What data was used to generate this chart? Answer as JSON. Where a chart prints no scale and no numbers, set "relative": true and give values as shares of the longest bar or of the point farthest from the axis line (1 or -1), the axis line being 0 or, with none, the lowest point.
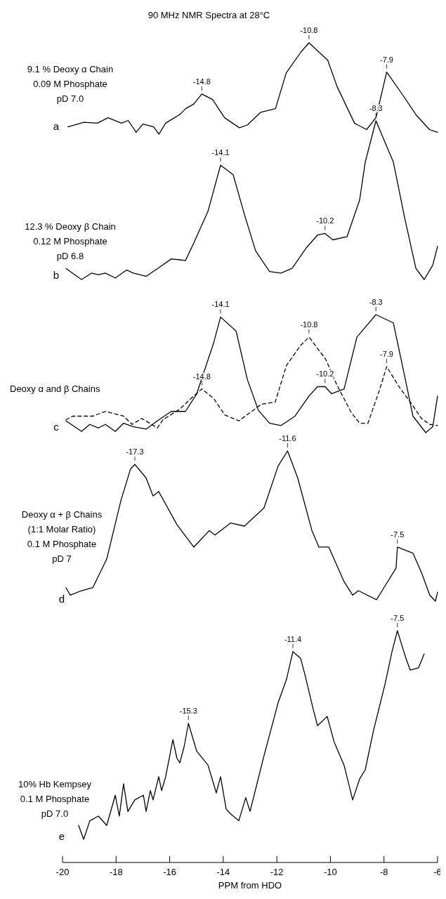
{
  "chart_data": [
    {
      "type": "line",
      "relative": true,
      "title": "9.1 % Deoxy α Chain\n0.09 M Phosphate\npD 7.0",
      "subtitle": "a",
      "xlim": [
        -20,
        -6
      ],
      "line_style": "solid",
      "color": "#000000",
      "annotations": [
        "90 MHz NMR Spectra at 28°C",
        {
          "text": "-14.8",
          "x": -14.8,
          "y": 0.44
        },
        {
          "text": "-10.8",
          "x": -10.8,
          "y": 1.0
        },
        {
          "text": "-7.9",
          "x": -7.9,
          "y": 0.68
        }
      ],
      "x": [
        -19.8,
        -19.2,
        -18.7,
        -18.3,
        -17.8,
        -17.55,
        -17.25,
        -17.0,
        -16.6,
        -16.4,
        -16.15,
        -15.6,
        -15.4,
        -15.1,
        -14.8,
        -14.4,
        -13.95,
        -13.4,
        -13.1,
        -12.6,
        -12.05,
        -11.65,
        -11.1,
        -10.8,
        -10.1,
        -9.75,
        -9.1,
        -8.65,
        -8.3,
        -7.9,
        -7.35,
        -6.8,
        -6.3,
        -6.0
      ],
      "values": [
        0.08,
        0.13,
        0.12,
        0.18,
        0.12,
        0.15,
        0.02,
        0.11,
        0.08,
        0.0,
        0.12,
        0.22,
        0.28,
        0.33,
        0.44,
        0.38,
        0.18,
        0.07,
        0.1,
        0.24,
        0.28,
        0.67,
        0.9,
        1.0,
        0.81,
        0.52,
        0.12,
        0.05,
        0.18,
        0.68,
        0.45,
        0.21,
        0.05,
        0.02
      ]
    },
    {
      "type": "line",
      "relative": true,
      "title": "12.3 % Deoxy β Chain\n0.12 M Phosphate\npD 6.8",
      "subtitle": "b",
      "xlim": [
        -20,
        -6
      ],
      "line_style": "solid",
      "color": "#000000",
      "annotations": [
        {
          "text": "-14.1",
          "x": -14.1,
          "y": 0.72
        },
        {
          "text": "-10.2",
          "x": -10.2,
          "y": 0.29
        },
        {
          "text": "-8.3",
          "x": -8.3,
          "y": 1.0
        }
      ],
      "x": [
        -19.87,
        -19.29,
        -18.92,
        -18.66,
        -18.4,
        -18.03,
        -17.61,
        -17.35,
        -16.88,
        -16.36,
        -15.94,
        -15.41,
        -15.1,
        -14.57,
        -14.1,
        -13.63,
        -13.21,
        -12.79,
        -12.27,
        -11.85,
        -11.43,
        -10.9,
        -10.48,
        -10.2,
        -9.91,
        -9.38,
        -8.91,
        -8.7,
        -8.3,
        -7.65,
        -7.23,
        -6.81,
        -6.5,
        -6.18,
        -6.0
      ],
      "values": [
        0.07,
        0.0,
        0.04,
        0.03,
        0.04,
        0.01,
        0.06,
        0.04,
        0.02,
        0.08,
        0.13,
        0.12,
        0.23,
        0.43,
        0.72,
        0.66,
        0.41,
        0.18,
        0.05,
        0.04,
        0.07,
        0.2,
        0.28,
        0.29,
        0.25,
        0.27,
        0.5,
        0.74,
        1.0,
        0.74,
        0.39,
        0.07,
        0.0,
        0.09,
        0.21
      ]
    },
    {
      "type": "line",
      "relative": true,
      "title": "Deoxy α and β Chains",
      "subtitle": "c",
      "xlim": [
        -20,
        -6
      ],
      "annotations": [
        {
          "text": "-14.1",
          "x": -14.1,
          "y": 0.98
        },
        {
          "text": "-14.8",
          "x": -14.8,
          "y": 0.37
        },
        {
          "text": "-10.8",
          "x": -10.8,
          "y": 0.81
        },
        {
          "text": "-10.2",
          "x": -10.2,
          "y": 0.39
        },
        {
          "text": "-8.3",
          "x": -8.3,
          "y": 1.0
        },
        {
          "text": "-7.9",
          "x": -7.9,
          "y": 0.56
        }
      ],
      "series": [
        {
          "color": "#000000",
          "line_style": "solid",
          "x": [
            -19.87,
            -19.29,
            -18.98,
            -18.66,
            -18.4,
            -18.03,
            -17.72,
            -17.35,
            -16.88,
            -16.46,
            -15.94,
            -15.41,
            -14.99,
            -14.36,
            -14.1,
            -13.52,
            -13.1,
            -12.69,
            -12.27,
            -11.85,
            -11.32,
            -10.8,
            -10.48,
            -10.2,
            -9.96,
            -9.49,
            -9.01,
            -8.3,
            -7.65,
            -7.23,
            -6.92,
            -6.44,
            -6.18,
            -6.0
          ],
          "values": [
            0.1,
            0.01,
            0.07,
            0.04,
            0.07,
            0.01,
            0.08,
            0.05,
            0.03,
            0.1,
            0.18,
            0.18,
            0.33,
            0.76,
            0.98,
            0.86,
            0.45,
            0.19,
            0.08,
            0.06,
            0.14,
            0.31,
            0.39,
            0.39,
            0.33,
            0.37,
            0.81,
            1.0,
            0.93,
            0.48,
            0.14,
            0.0,
            0.05,
            0.31
          ]
        },
        {
          "color": "#000000",
          "line_style": "dashed",
          "x": [
            -19.87,
            -19.61,
            -18.87,
            -18.4,
            -17.72,
            -17.4,
            -17.04,
            -16.46,
            -16.25,
            -15.62,
            -15.2,
            -14.8,
            -14.36,
            -13.94,
            -13.42,
            -13.0,
            -12.58,
            -12.06,
            -11.64,
            -11.11,
            -10.8,
            -10.17,
            -9.75,
            -9.22,
            -8.91,
            -8.6,
            -8.17,
            -7.9,
            -7.44,
            -7.02,
            -6.6,
            -6.29,
            -6.0
          ],
          "values": [
            0.11,
            0.14,
            0.14,
            0.18,
            0.14,
            0.07,
            0.12,
            0.04,
            0.11,
            0.2,
            0.29,
            0.37,
            0.29,
            0.15,
            0.1,
            0.17,
            0.24,
            0.26,
            0.57,
            0.74,
            0.81,
            0.62,
            0.4,
            0.17,
            0.08,
            0.08,
            0.36,
            0.56,
            0.39,
            0.26,
            0.12,
            0.07,
            0.06
          ]
        }
      ]
    },
    {
      "type": "line",
      "relative": true,
      "title": "Deoxy α + β Chains\n(1:1 Molar Ratio)\n0.1 M  Phosphate\npD 7",
      "subtitle": "d",
      "xlim": [
        -20,
        -6
      ],
      "line_style": "solid",
      "color": "#000000",
      "annotations": [
        {
          "text": "-17.3",
          "x": -17.3,
          "y": 0.91
        },
        {
          "text": "-11.6",
          "x": -11.6,
          "y": 1.0
        },
        {
          "text": "-7.5",
          "x": -7.5,
          "y": 0.36
        }
      ],
      "x": [
        -19.87,
        -19.71,
        -19.29,
        -18.87,
        -18.35,
        -17.82,
        -17.46,
        -17.3,
        -16.88,
        -16.62,
        -16.41,
        -15.73,
        -15.1,
        -14.52,
        -14.31,
        -13.73,
        -13.21,
        -12.48,
        -11.95,
        -11.6,
        -11.22,
        -10.69,
        -10.43,
        -10.06,
        -9.49,
        -9.17,
        -8.96,
        -8.28,
        -8.07,
        -7.55,
        -7.5,
        -6.92,
        -6.6,
        -6.29,
        -6.08,
        -6.0
      ],
      "values": [
        0.09,
        0.04,
        0.07,
        0.09,
        0.28,
        0.67,
        0.88,
        0.91,
        0.82,
        0.7,
        0.73,
        0.51,
        0.36,
        0.47,
        0.44,
        0.52,
        0.5,
        0.62,
        0.9,
        1.0,
        0.82,
        0.47,
        0.36,
        0.36,
        0.13,
        0.04,
        0.07,
        0.01,
        0.07,
        0.22,
        0.36,
        0.32,
        0.19,
        0.04,
        0.0,
        0.06
      ]
    },
    {
      "type": "line",
      "relative": true,
      "title": "10% Hb Kempsey\n0.1 M Phosphate\npD 7.0",
      "subtitle": "e",
      "xlim": [
        -20,
        -6
      ],
      "xlabel": "PPM from HDO",
      "tick_labels": "x",
      "line_style": "solid",
      "color": "#000000",
      "xticks": [
        -20,
        -18,
        -16,
        -14,
        -12,
        -10,
        -8,
        -6
      ],
      "annotations": [
        {
          "text": "-15.3",
          "x": -15.3,
          "y": 0.6
        },
        {
          "text": "-11.4",
          "x": -11.4,
          "y": 0.91
        },
        {
          "text": "-7.5",
          "x": -7.5,
          "y": 1.0
        }
      ],
      "x": [
        -19.4,
        -19.21,
        -18.98,
        -18.66,
        -18.35,
        -18.03,
        -17.88,
        -17.72,
        -17.56,
        -17.3,
        -16.98,
        -16.88,
        -16.72,
        -16.62,
        -16.41,
        -16.3,
        -16.15,
        -15.88,
        -15.73,
        -15.62,
        -15.46,
        -15.3,
        -14.99,
        -14.57,
        -14.26,
        -14.1,
        -13.89,
        -13.73,
        -13.42,
        -13.16,
        -13.0,
        -12.48,
        -11.95,
        -11.64,
        -11.4,
        -11.11,
        -10.95,
        -10.64,
        -10.48,
        -10.12,
        -9.86,
        -9.49,
        -9.17,
        -8.91,
        -8.7,
        -8.39,
        -7.96,
        -7.7,
        -7.5,
        -7.18,
        -7.02,
        -6.71,
        -6.5
      ],
      "values": [
        0.16,
        0.1,
        0.18,
        0.2,
        0.16,
        0.29,
        0.2,
        0.34,
        0.22,
        0.27,
        0.29,
        0.22,
        0.31,
        0.27,
        0.37,
        0.31,
        0.37,
        0.53,
        0.45,
        0.43,
        0.5,
        0.6,
        0.48,
        0.42,
        0.3,
        0.37,
        0.23,
        0.21,
        0.18,
        0.28,
        0.22,
        0.46,
        0.69,
        0.79,
        0.91,
        0.88,
        0.81,
        0.66,
        0.59,
        0.63,
        0.52,
        0.42,
        0.27,
        0.36,
        0.4,
        0.57,
        0.77,
        0.91,
        1.0,
        0.88,
        0.83,
        0.84,
        0.9
      ]
    }
  ]
}
